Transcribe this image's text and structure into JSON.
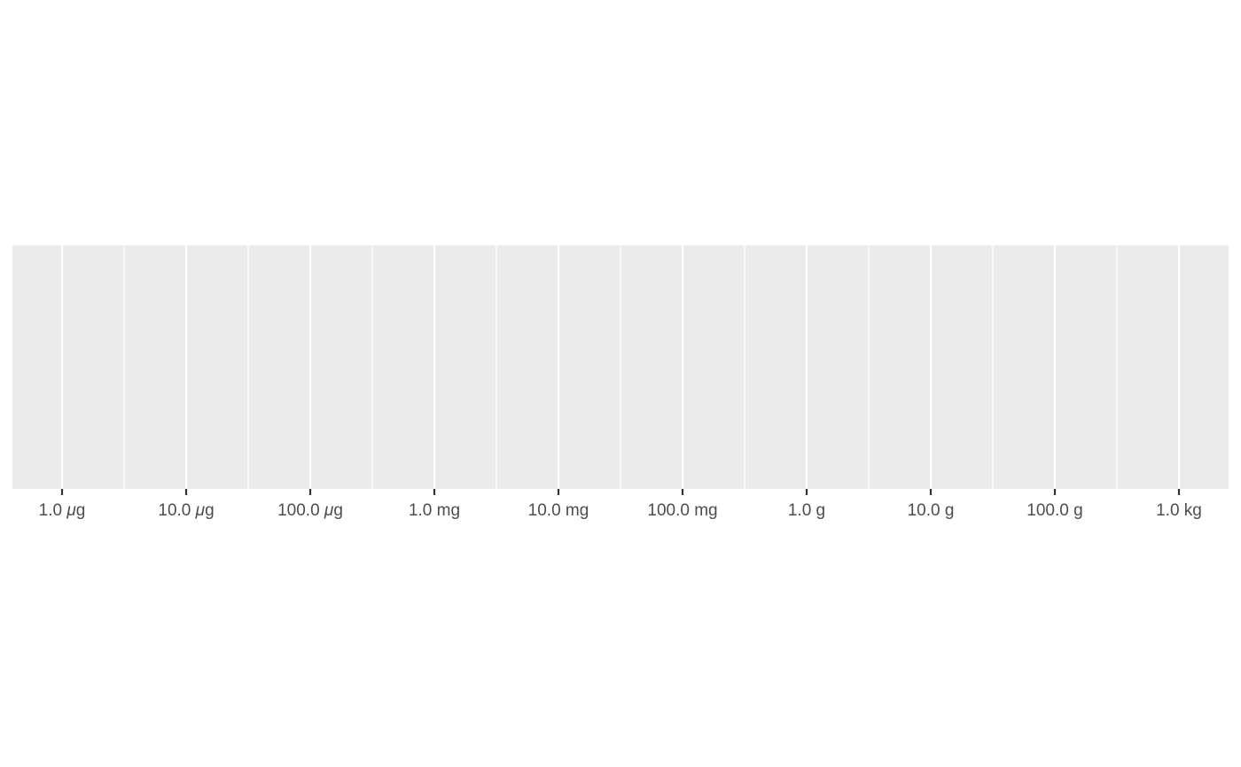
{
  "chart_data": {
    "type": "scatter",
    "title": "",
    "xlabel": "",
    "ylabel": "",
    "x_scale": "log10",
    "x_unit_base": "g",
    "x_major_breaks": [
      1e-06,
      1e-05,
      0.0001,
      0.001,
      0.01,
      0.1,
      1,
      10,
      100,
      1000
    ],
    "x_tick_labels": [
      {
        "value": "1.0 ",
        "unit": "μ",
        "suffix": "g"
      },
      {
        "value": "10.0 ",
        "unit": "μ",
        "suffix": "g"
      },
      {
        "value": "100.0 ",
        "unit": "μ",
        "suffix": "g"
      },
      {
        "value": "1.0 mg",
        "unit": "",
        "suffix": ""
      },
      {
        "value": "10.0 mg",
        "unit": "",
        "suffix": ""
      },
      {
        "value": "100.0 mg",
        "unit": "",
        "suffix": ""
      },
      {
        "value": "1.0 g",
        "unit": "",
        "suffix": ""
      },
      {
        "value": "10.0 g",
        "unit": "",
        "suffix": ""
      },
      {
        "value": "100.0 g",
        "unit": "",
        "suffix": ""
      },
      {
        "value": "1.0 kg",
        "unit": "",
        "suffix": ""
      }
    ],
    "x_minor_gridlines": true,
    "xlim": [
      3.98e-07,
      2512
    ],
    "y_axis_visible": false,
    "grid": true,
    "legend": "none",
    "series": [],
    "colors": {
      "panel_background": "#ebebeb",
      "grid_major": "#ffffff",
      "grid_minor": "#ffffff",
      "tick": "#333333",
      "tick_label": "#4d4d4d",
      "page_background": "#ffffff"
    }
  }
}
